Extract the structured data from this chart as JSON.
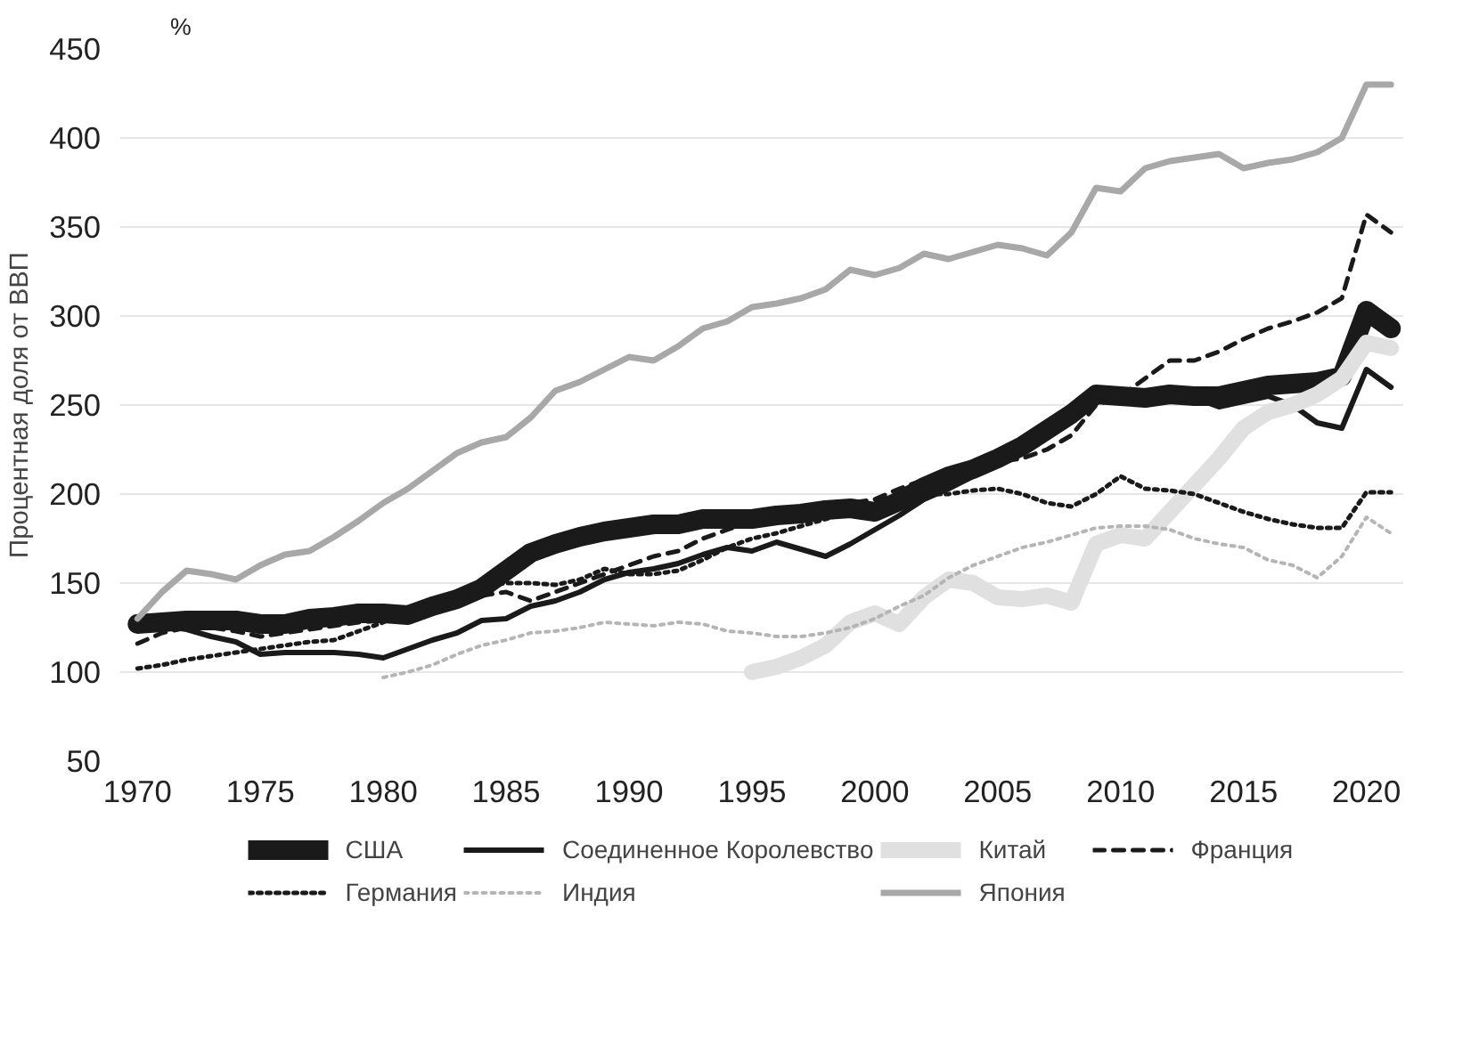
{
  "chart_data": {
    "type": "line",
    "ylabel": "Процентная доля от ВВП",
    "annotations": [
      "%"
    ],
    "x": [
      1970,
      1971,
      1972,
      1973,
      1974,
      1975,
      1976,
      1977,
      1978,
      1979,
      1980,
      1981,
      1982,
      1983,
      1984,
      1985,
      1986,
      1987,
      1988,
      1989,
      1990,
      1991,
      1992,
      1993,
      1994,
      1995,
      1996,
      1997,
      1998,
      1999,
      2000,
      2001,
      2002,
      2003,
      2004,
      2005,
      2006,
      2007,
      2008,
      2009,
      2010,
      2011,
      2012,
      2013,
      2014,
      2015,
      2016,
      2017,
      2018,
      2019,
      2020,
      2021
    ],
    "series": [
      {
        "name": "США",
        "color": "#1a1a1a",
        "line_style": "solid",
        "values": [
          127,
          128,
          129,
          129,
          129,
          127,
          127,
          130,
          131,
          133,
          133,
          132,
          137,
          141,
          147,
          157,
          167,
          172,
          176,
          179,
          181,
          183,
          183,
          186,
          186,
          186,
          188,
          189,
          191,
          192,
          190,
          196,
          204,
          210,
          214,
          220,
          227,
          236,
          245,
          256,
          255,
          254,
          256,
          255,
          255,
          258,
          261,
          262,
          263,
          266,
          303,
          293
        ]
      },
      {
        "name": "Соединенное Королевство",
        "color": "#1a1a1a",
        "line_style": "solid",
        "values": [
          125,
          126,
          124,
          120,
          117,
          110,
          111,
          111,
          111,
          110,
          108,
          113,
          118,
          122,
          129,
          130,
          137,
          140,
          145,
          152,
          156,
          158,
          161,
          166,
          170,
          168,
          173,
          169,
          165,
          172,
          180,
          188,
          197,
          203,
          210,
          217,
          225,
          234,
          243,
          255,
          254,
          255,
          257,
          254,
          249,
          252,
          255,
          250,
          240,
          237,
          270,
          260
        ]
      },
      {
        "name": "Китай",
        "color": "#e0e0e0",
        "line_style": "solid",
        "values": [
          null,
          null,
          null,
          null,
          null,
          null,
          null,
          null,
          null,
          null,
          null,
          null,
          null,
          null,
          null,
          null,
          null,
          null,
          null,
          null,
          null,
          null,
          null,
          null,
          null,
          100,
          103,
          108,
          115,
          128,
          133,
          127,
          142,
          152,
          150,
          142,
          141,
          143,
          139,
          172,
          177,
          175,
          190,
          205,
          220,
          237,
          246,
          250,
          256,
          265,
          285,
          282
        ]
      },
      {
        "name": "Франция",
        "color": "#1a1a1a",
        "line_style": "dashed",
        "values": [
          116,
          122,
          125,
          125,
          123,
          120,
          122,
          124,
          126,
          128,
          129,
          130,
          136,
          140,
          143,
          145,
          140,
          145,
          150,
          155,
          160,
          165,
          168,
          175,
          180,
          185,
          188,
          190,
          192,
          195,
          197,
          203,
          208,
          212,
          215,
          218,
          220,
          225,
          233,
          250,
          255,
          265,
          275,
          275,
          280,
          287,
          293,
          297,
          302,
          310,
          357,
          347
        ]
      },
      {
        "name": "Германия",
        "color": "#1a1a1a",
        "line_style": "dotted",
        "values": [
          102,
          104,
          107,
          109,
          111,
          113,
          115,
          117,
          118,
          123,
          128,
          135,
          138,
          145,
          148,
          150,
          150,
          149,
          152,
          158,
          155,
          155,
          157,
          163,
          170,
          175,
          178,
          182,
          186,
          190,
          193,
          198,
          200,
          200,
          202,
          203,
          200,
          195,
          193,
          200,
          210,
          203,
          202,
          200,
          195,
          190,
          186,
          183,
          181,
          181,
          201,
          201
        ]
      },
      {
        "name": "Индия",
        "color": "#b5b5b5",
        "line_style": "dotted",
        "values": [
          null,
          null,
          null,
          null,
          null,
          null,
          null,
          null,
          null,
          null,
          97,
          100,
          104,
          110,
          115,
          118,
          122,
          123,
          125,
          128,
          127,
          126,
          128,
          127,
          123,
          122,
          120,
          120,
          122,
          125,
          130,
          137,
          143,
          153,
          160,
          165,
          170,
          173,
          177,
          181,
          182,
          182,
          180,
          175,
          172,
          170,
          163,
          160,
          153,
          165,
          187,
          178
        ]
      },
      {
        "name": "Япония",
        "color": "#a8a8a8",
        "line_style": "solid",
        "values": [
          130,
          145,
          157,
          155,
          152,
          160,
          166,
          168,
          176,
          185,
          195,
          203,
          213,
          223,
          229,
          232,
          243,
          258,
          263,
          270,
          277,
          275,
          283,
          293,
          297,
          305,
          307,
          310,
          315,
          326,
          323,
          327,
          335,
          332,
          336,
          340,
          338,
          334,
          347,
          372,
          370,
          383,
          387,
          389,
          391,
          383,
          386,
          388,
          392,
          400,
          430,
          430
        ]
      }
    ],
    "xlim": [
      1969.3,
      2021.5
    ],
    "xticks": [
      1970,
      1975,
      1980,
      1985,
      1990,
      1995,
      2000,
      2005,
      2010,
      2015,
      2020
    ],
    "ylim": [
      50,
      450
    ],
    "yticks": [
      50,
      100,
      150,
      200,
      250,
      300,
      350,
      400,
      450
    ],
    "grid": "y",
    "legend": "bottom"
  }
}
